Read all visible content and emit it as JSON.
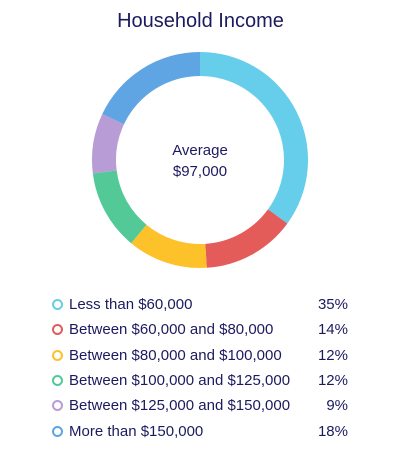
{
  "chart_data": {
    "type": "pie",
    "title": "Household Income",
    "center_label": "Average",
    "center_value": "$97,000",
    "legend_placement": "bottom",
    "categories": [
      "Less than $60,000",
      "Between $60,000 and $80,000",
      "Between $80,000 and $100,000",
      "Between $100,000 and $125,000",
      "Between $125,000 and $150,000",
      "More than $150,000"
    ],
    "values": [
      35,
      14,
      12,
      12,
      9,
      18
    ],
    "value_labels": [
      "35%",
      "14%",
      "12%",
      "12%",
      "9%",
      "18%"
    ],
    "colors": [
      "#66cdea",
      "#e45c59",
      "#fdc22a",
      "#52c997",
      "#b79cd6",
      "#5fa4e3"
    ],
    "start_angle_deg": 0,
    "direction": "clockwise"
  }
}
